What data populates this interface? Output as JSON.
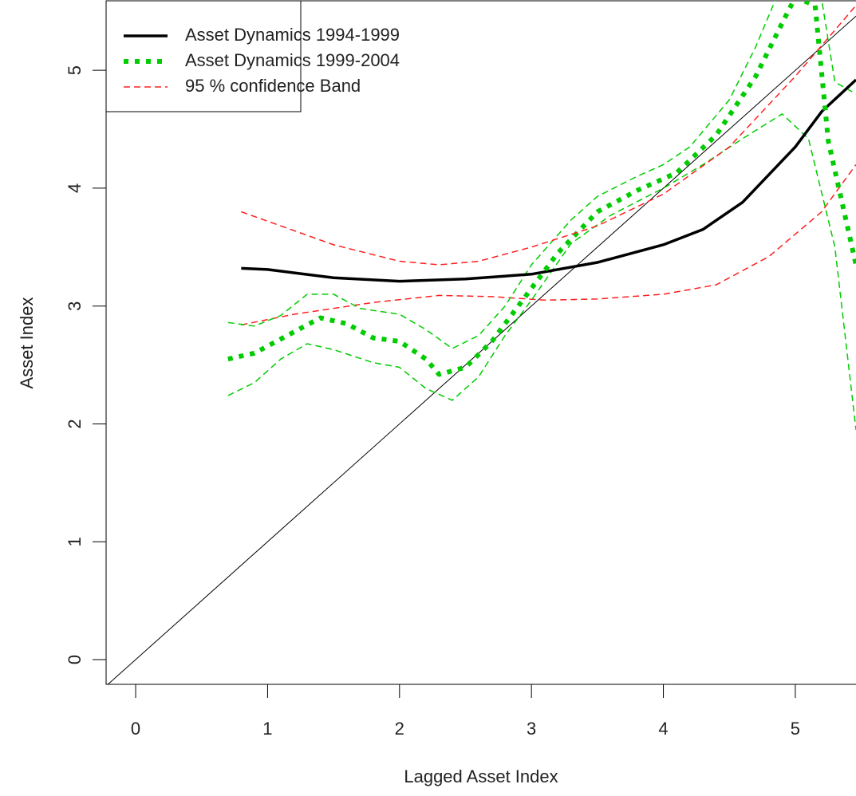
{
  "chart_data": {
    "type": "line",
    "x_label": "Lagged Asset Index",
    "y_label": "Asset Index",
    "xlim": [
      -0.224,
      5.46
    ],
    "ylim": [
      -0.21,
      5.59
    ],
    "xticks": [
      0,
      1,
      2,
      3,
      4,
      5
    ],
    "yticks": [
      0,
      1,
      2,
      3,
      4,
      5
    ],
    "diagonal": true,
    "legend": "upper left",
    "series": [
      {
        "name": "Asset Dynamics 1994-1999",
        "color": "#000000",
        "style": "solid",
        "width": 3.5,
        "x": [
          0.8,
          1.0,
          1.5,
          2.0,
          2.5,
          3.0,
          3.5,
          4.0,
          4.3,
          4.6,
          5.0,
          5.2,
          5.46
        ],
        "values": [
          3.32,
          3.31,
          3.24,
          3.21,
          3.23,
          3.27,
          3.37,
          3.52,
          3.65,
          3.88,
          4.35,
          4.65,
          4.92
        ]
      },
      {
        "name": "Asset Dynamics 1999-2004",
        "color": "#00cc00",
        "style": "dotted",
        "width": 6,
        "x": [
          0.7,
          0.9,
          1.1,
          1.4,
          1.6,
          1.8,
          2.0,
          2.2,
          2.3,
          2.5,
          2.7,
          3.0,
          3.2,
          3.5,
          3.8,
          4.1,
          4.4,
          4.7,
          4.9,
          5.0,
          5.15,
          5.25,
          5.35,
          5.46
        ],
        "values": [
          2.55,
          2.6,
          2.72,
          2.9,
          2.85,
          2.73,
          2.7,
          2.55,
          2.42,
          2.48,
          2.7,
          3.15,
          3.45,
          3.8,
          3.98,
          4.13,
          4.45,
          4.95,
          5.4,
          5.62,
          5.55,
          4.4,
          3.9,
          3.35
        ]
      },
      {
        "name": "95 % confidence Band",
        "color": "#ff2020",
        "style": "dashed",
        "width": 1.5,
        "x": [
          0.8,
          1.0,
          1.5,
          2.0,
          2.3,
          2.6,
          3.0,
          3.5,
          4.0,
          4.5,
          5.0,
          5.46
        ],
        "values": [
          3.8,
          3.72,
          3.52,
          3.38,
          3.35,
          3.38,
          3.5,
          3.68,
          3.95,
          4.35,
          4.95,
          5.55
        ]
      },
      {
        "color": "#ff2020",
        "style": "dashed",
        "width": 1.5,
        "x": [
          0.8,
          1.2,
          1.8,
          2.3,
          2.7,
          3.1,
          3.5,
          4.0,
          4.4,
          4.8,
          5.2,
          5.46
        ],
        "values": [
          2.84,
          2.93,
          3.03,
          3.09,
          3.08,
          3.05,
          3.06,
          3.1,
          3.18,
          3.42,
          3.8,
          4.2
        ]
      },
      {
        "color": "#00cc00",
        "style": "dashed",
        "width": 1.5,
        "x": [
          0.7,
          0.9,
          1.1,
          1.3,
          1.5,
          1.7,
          2.0,
          2.2,
          2.4,
          2.6,
          2.8,
          3.0,
          3.3,
          3.5,
          3.8,
          4.0,
          4.2,
          4.5,
          4.7,
          4.85,
          5.2,
          5.3,
          5.46
        ],
        "values": [
          2.86,
          2.83,
          2.92,
          3.1,
          3.1,
          2.98,
          2.93,
          2.8,
          2.64,
          2.75,
          3.0,
          3.35,
          3.73,
          3.93,
          4.1,
          4.2,
          4.35,
          4.75,
          5.2,
          5.6,
          5.6,
          4.9,
          4.8
        ]
      },
      {
        "color": "#00cc00",
        "style": "dashed",
        "width": 1.5,
        "x": [
          0.7,
          0.9,
          1.1,
          1.3,
          1.5,
          1.8,
          2.0,
          2.2,
          2.4,
          2.6,
          2.8,
          3.0,
          3.3,
          3.6,
          4.0,
          4.3,
          4.6,
          4.9,
          5.1,
          5.3,
          5.46
        ],
        "values": [
          2.24,
          2.35,
          2.55,
          2.68,
          2.63,
          2.52,
          2.48,
          2.3,
          2.2,
          2.4,
          2.75,
          3.05,
          3.53,
          3.77,
          4.0,
          4.2,
          4.42,
          4.63,
          4.42,
          3.5,
          1.95
        ]
      }
    ]
  }
}
